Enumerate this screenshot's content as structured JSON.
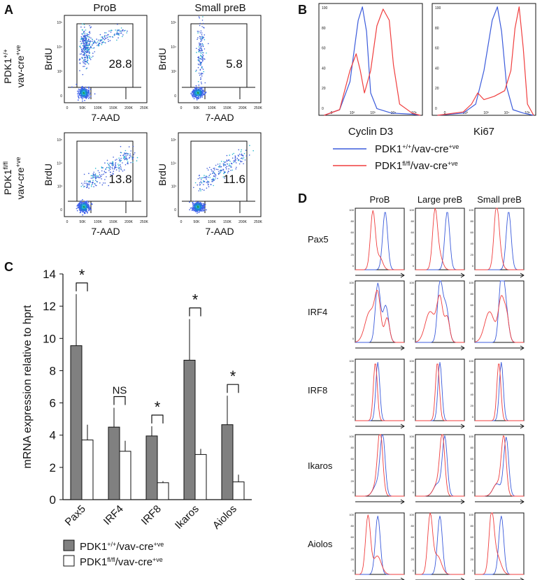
{
  "panels": {
    "A": {
      "letter": "A",
      "columns": [
        "ProB",
        "Small preB"
      ],
      "rows": [
        {
          "genotype_base": "PDK1",
          "genotype_sup": "+/+",
          "genotype_line2": "vav-cre",
          "genotype_line2_sup": "+ve"
        },
        {
          "genotype_base": "PDK1",
          "genotype_sup": "fl/fl",
          "genotype_line2": "vav-cre",
          "genotype_line2_sup": "+ve"
        }
      ],
      "y_label": "BrdU",
      "x_label": "7-AAD",
      "x_ticks": [
        "0",
        "50K",
        "100K",
        "150K",
        "200K",
        "250K"
      ],
      "y_ticks": [
        "0",
        "10³",
        "10⁴",
        "10⁵"
      ],
      "gate_values": [
        "28.8",
        "5.8",
        "13.8",
        "11.6"
      ]
    },
    "B": {
      "letter": "B",
      "plots": [
        {
          "xlabel": "Cyclin D3"
        },
        {
          "xlabel": "Ki67"
        }
      ],
      "y_ticks": [
        "0",
        "20",
        "40",
        "60",
        "80",
        "100"
      ],
      "x_ticks": [
        "0",
        "10²",
        "10³",
        "10⁴",
        "10⁵"
      ],
      "legend": [
        {
          "base": "PDK1",
          "sup": "+/+",
          "mid": "/vav-cre",
          "sup2": "+ve",
          "color": "#3b5bdb"
        },
        {
          "base": "PDK1",
          "sup": "fl/fl",
          "mid": "/vav-cre",
          "sup2": "+ve",
          "color": "#f03e3e"
        }
      ]
    },
    "C": {
      "letter": "C",
      "legend": [
        {
          "base": "PDK1",
          "sup": "+/+",
          "mid": "/vav-cre",
          "sup2": "+ve",
          "fill": "#808080"
        },
        {
          "base": "PDK1",
          "sup": "fl/fl",
          "mid": "/vav-cre",
          "sup2": "+ve",
          "fill": "#ffffff"
        }
      ]
    },
    "D": {
      "letter": "D",
      "columns": [
        "ProB",
        "Large preB",
        "Small preB"
      ],
      "rows": [
        "Pax5",
        "IRF4",
        "IRF8",
        "Ikaros",
        "Aiolos"
      ],
      "y_ticks": [
        "0",
        "20",
        "40",
        "60",
        "80",
        "100"
      ]
    }
  },
  "chart_data": {
    "type": "bar",
    "title": "",
    "xlabel": "",
    "ylabel": "mRNA expression relative to hprt",
    "ylim": [
      0,
      14
    ],
    "yticks": [
      0,
      2,
      4,
      6,
      8,
      10,
      12,
      14
    ],
    "categories": [
      "Pax5",
      "IRF4",
      "IRF8",
      "Ikaros",
      "Aiolos"
    ],
    "series": [
      {
        "name": "PDK1+/+/vav-cre+ve",
        "values": [
          9.55,
          4.5,
          3.95,
          8.65,
          4.65
        ],
        "errors": [
          3.2,
          1.2,
          0.6,
          2.55,
          1.8
        ],
        "color": "#808080"
      },
      {
        "name": "PDK1fl/fl/vav-cre+ve",
        "values": [
          3.7,
          3.0,
          1.05,
          2.8,
          1.1
        ],
        "errors": [
          0.95,
          0.65,
          0.1,
          0.35,
          0.45
        ],
        "color": "#ffffff"
      }
    ],
    "significance": [
      "*",
      "NS",
      "*",
      "*",
      "*"
    ]
  }
}
